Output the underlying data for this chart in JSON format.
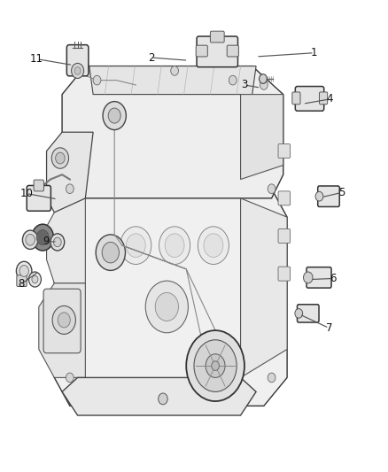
{
  "background_color": "#ffffff",
  "figsize": [
    4.38,
    5.33
  ],
  "dpi": 100,
  "line_color": "#444444",
  "label_fontsize": 8.5,
  "label_color": "#111111",
  "labels": {
    "1": {
      "lp": [
        0.81,
        0.888
      ],
      "ep": [
        0.66,
        0.88
      ]
    },
    "2": {
      "lp": [
        0.39,
        0.878
      ],
      "ep": [
        0.485,
        0.872
      ]
    },
    "3": {
      "lp": [
        0.63,
        0.82
      ],
      "ep": [
        0.672,
        0.814
      ]
    },
    "4": {
      "lp": [
        0.85,
        0.79
      ],
      "ep": [
        0.78,
        0.78
      ]
    },
    "5": {
      "lp": [
        0.88,
        0.592
      ],
      "ep": [
        0.828,
        0.582
      ]
    },
    "6": {
      "lp": [
        0.858,
        0.41
      ],
      "ep": [
        0.8,
        0.408
      ]
    },
    "7": {
      "lp": [
        0.848,
        0.305
      ],
      "ep": [
        0.772,
        0.334
      ]
    },
    "8": {
      "lp": [
        0.055,
        0.398
      ],
      "ep": [
        0.1,
        0.425
      ]
    },
    "9": {
      "lp": [
        0.118,
        0.488
      ],
      "ep": [
        0.148,
        0.488
      ]
    },
    "10": {
      "lp": [
        0.068,
        0.59
      ],
      "ep": [
        0.148,
        0.578
      ]
    },
    "11": {
      "lp": [
        0.095,
        0.875
      ],
      "ep": [
        0.188,
        0.862
      ]
    }
  }
}
